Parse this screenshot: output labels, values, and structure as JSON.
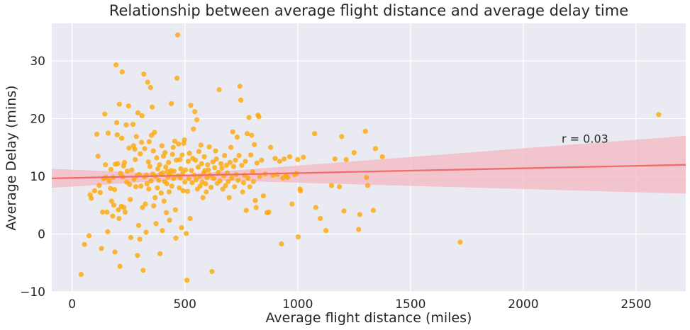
{
  "chart_data": {
    "type": "scatter",
    "title": "Relationship between average flight distance and average delay time",
    "xlabel": "Average flight distance (miles)",
    "ylabel": "Average Delay (mins)",
    "xlim": [
      -90,
      2720
    ],
    "ylim": [
      -10,
      36.5
    ],
    "xticks": [
      0,
      500,
      1000,
      1500,
      2000,
      2500
    ],
    "yticks": [
      -10,
      0,
      10,
      20,
      30
    ],
    "grid": true,
    "annotation": "r = 0.03",
    "colors": {
      "background": "#eaeaf2",
      "grid": "#ffffff",
      "points": "#ffa500",
      "regression_line": "#f26b6b",
      "confidence_band": "#f4b8c1"
    },
    "regression": {
      "x": [
        -90,
        2720
      ],
      "y": [
        9.65,
        12.0
      ]
    },
    "confidence_band": {
      "x": [
        -90,
        500,
        2720
      ],
      "upper": [
        11.3,
        10.35,
        17.0
      ],
      "lower": [
        8.0,
        9.45,
        7.0
      ]
    },
    "points": [
      [
        40,
        -7
      ],
      [
        55,
        -1.8
      ],
      [
        75,
        -0.3
      ],
      [
        80,
        6.8
      ],
      [
        85,
        6.2
      ],
      [
        100,
        7.5
      ],
      [
        110,
        17.3
      ],
      [
        115,
        13.5
      ],
      [
        120,
        8.4
      ],
      [
        125,
        7.2
      ],
      [
        130,
        -2.5
      ],
      [
        135,
        3.8
      ],
      [
        140,
        9.6
      ],
      [
        145,
        20.8
      ],
      [
        148,
        12.0
      ],
      [
        150,
        9.8
      ],
      [
        155,
        3.8
      ],
      [
        158,
        0.4
      ],
      [
        160,
        17.5
      ],
      [
        165,
        9.2
      ],
      [
        170,
        7.9
      ],
      [
        172,
        11.2
      ],
      [
        175,
        5.7
      ],
      [
        180,
        3.1
      ],
      [
        182,
        9.8
      ],
      [
        185,
        5.0
      ],
      [
        188,
        7.7
      ],
      [
        190,
        -3.1
      ],
      [
        192,
        12.1
      ],
      [
        195,
        29.3
      ],
      [
        198,
        19.3
      ],
      [
        200,
        17.2
      ],
      [
        202,
        12.2
      ],
      [
        205,
        4.2
      ],
      [
        208,
        2.7
      ],
      [
        210,
        22.5
      ],
      [
        212,
        -5.6
      ],
      [
        215,
        10.5
      ],
      [
        218,
        4.8
      ],
      [
        220,
        16.6
      ],
      [
        222,
        28.1
      ],
      [
        225,
        9.9
      ],
      [
        228,
        11.8
      ],
      [
        230,
        4.6
      ],
      [
        232,
        12.4
      ],
      [
        235,
        3.8
      ],
      [
        240,
        18.9
      ],
      [
        242,
        9.0
      ],
      [
        245,
        10.9
      ],
      [
        250,
        22.2
      ],
      [
        252,
        14.9
      ],
      [
        255,
        8.6
      ],
      [
        258,
        6.0
      ],
      [
        260,
        -0.6
      ],
      [
        265,
        11.1
      ],
      [
        270,
        19.0
      ],
      [
        272,
        15.3
      ],
      [
        275,
        9.5
      ],
      [
        278,
        14.7
      ],
      [
        280,
        12.9
      ],
      [
        282,
        8.2
      ],
      [
        285,
        16.9
      ],
      [
        288,
        10.1
      ],
      [
        290,
        -3.7
      ],
      [
        292,
        21.0
      ],
      [
        295,
        1.5
      ],
      [
        298,
        10.3
      ],
      [
        300,
        -0.9
      ],
      [
        302,
        13.9
      ],
      [
        305,
        8.3
      ],
      [
        308,
        15.9
      ],
      [
        310,
        20.5
      ],
      [
        312,
        4.6
      ],
      [
        315,
        -6.3
      ],
      [
        318,
        27.7
      ],
      [
        320,
        9.9
      ],
      [
        322,
        14.8
      ],
      [
        325,
        5.2
      ],
      [
        328,
        0.3
      ],
      [
        330,
        10.2
      ],
      [
        332,
        8.7
      ],
      [
        335,
        26.3
      ],
      [
        338,
        12.5
      ],
      [
        340,
        7.8
      ],
      [
        342,
        16.0
      ],
      [
        345,
        11.7
      ],
      [
        348,
        25.4
      ],
      [
        350,
        9.2
      ],
      [
        352,
        17.1
      ],
      [
        355,
        22.0
      ],
      [
        358,
        10.4
      ],
      [
        360,
        14.4
      ],
      [
        362,
        4.9
      ],
      [
        365,
        17.6
      ],
      [
        368,
        6.3
      ],
      [
        370,
        10.0
      ],
      [
        372,
        1.8
      ],
      [
        375,
        13.2
      ],
      [
        378,
        8.0
      ],
      [
        380,
        11.3
      ],
      [
        385,
        9.3
      ],
      [
        388,
        12.0
      ],
      [
        390,
        -3.4
      ],
      [
        392,
        10.4
      ],
      [
        395,
        7.1
      ],
      [
        398,
        15.3
      ],
      [
        400,
        0.6
      ],
      [
        402,
        10.6
      ],
      [
        405,
        13.5
      ],
      [
        408,
        5.7
      ],
      [
        410,
        9.1
      ],
      [
        412,
        14.1
      ],
      [
        415,
        11.6
      ],
      [
        418,
        3.7
      ],
      [
        420,
        8.7
      ],
      [
        422,
        10.8
      ],
      [
        425,
        9.9
      ],
      [
        428,
        12.4
      ],
      [
        430,
        7.3
      ],
      [
        432,
        2.4
      ],
      [
        435,
        10.3
      ],
      [
        438,
        11.0
      ],
      [
        440,
        22.6
      ],
      [
        442,
        8.3
      ],
      [
        445,
        13.8
      ],
      [
        448,
        15.0
      ],
      [
        450,
        9.6
      ],
      [
        452,
        10.9
      ],
      [
        455,
        16.1
      ],
      [
        458,
        4.2
      ],
      [
        460,
        -0.7
      ],
      [
        462,
        12.8
      ],
      [
        465,
        27.0
      ],
      [
        468,
        34.5
      ],
      [
        470,
        10.1
      ],
      [
        472,
        15.6
      ],
      [
        475,
        8.0
      ],
      [
        478,
        12.9
      ],
      [
        480,
        9.7
      ],
      [
        482,
        11.3
      ],
      [
        485,
        1.1
      ],
      [
        488,
        13.7
      ],
      [
        490,
        10.5
      ],
      [
        492,
        7.5
      ],
      [
        495,
        15.7
      ],
      [
        498,
        16.3
      ],
      [
        500,
        9.0
      ],
      [
        503,
        11.1
      ],
      [
        506,
        0.1
      ],
      [
        509,
        -8.0
      ],
      [
        512,
        7.4
      ],
      [
        515,
        12.6
      ],
      [
        518,
        9.6
      ],
      [
        520,
        14.0
      ],
      [
        523,
        2.7
      ],
      [
        526,
        22.3
      ],
      [
        529,
        11.0
      ],
      [
        532,
        8.9
      ],
      [
        535,
        13.1
      ],
      [
        538,
        18.2
      ],
      [
        541,
        10.2
      ],
      [
        544,
        21.2
      ],
      [
        547,
        12.8
      ],
      [
        550,
        9.4
      ],
      [
        553,
        19.8
      ],
      [
        556,
        7.8
      ],
      [
        559,
        11.6
      ],
      [
        562,
        14.3
      ],
      [
        565,
        10.0
      ],
      [
        568,
        8.3
      ],
      [
        571,
        15.4
      ],
      [
        574,
        12.2
      ],
      [
        577,
        9.0
      ],
      [
        580,
        6.3
      ],
      [
        583,
        10.6
      ],
      [
        586,
        13.4
      ],
      [
        589,
        11.0
      ],
      [
        592,
        8.7
      ],
      [
        595,
        7.3
      ],
      [
        598,
        9.8
      ],
      [
        601,
        12.0
      ],
      [
        604,
        11.1
      ],
      [
        608,
        15.1
      ],
      [
        612,
        10.2
      ],
      [
        616,
        8.1
      ],
      [
        620,
        -6.5
      ],
      [
        624,
        12.5
      ],
      [
        628,
        9.6
      ],
      [
        632,
        11.5
      ],
      [
        636,
        14.4
      ],
      [
        640,
        13.0
      ],
      [
        644,
        8.8
      ],
      [
        648,
        10.7
      ],
      [
        652,
        25.0
      ],
      [
        656,
        9.2
      ],
      [
        660,
        12.2
      ],
      [
        664,
        11.4
      ],
      [
        668,
        7.8
      ],
      [
        672,
        10.1
      ],
      [
        676,
        13.6
      ],
      [
        680,
        8.4
      ],
      [
        684,
        11.9
      ],
      [
        688,
        10.6
      ],
      [
        692,
        9.1
      ],
      [
        696,
        6.3
      ],
      [
        700,
        12.4
      ],
      [
        704,
        15.0
      ],
      [
        708,
        9.7
      ],
      [
        712,
        17.7
      ],
      [
        716,
        11.7
      ],
      [
        720,
        8.2
      ],
      [
        724,
        12.8
      ],
      [
        728,
        10.3
      ],
      [
        732,
        16.8
      ],
      [
        736,
        9.3
      ],
      [
        740,
        13.6
      ],
      [
        744,
        25.6
      ],
      [
        748,
        23.2
      ],
      [
        752,
        11.9
      ],
      [
        756,
        7.3
      ],
      [
        760,
        8.9
      ],
      [
        764,
        10.2
      ],
      [
        768,
        12.6
      ],
      [
        772,
        4.1
      ],
      [
        776,
        17.4
      ],
      [
        780,
        9.7
      ],
      [
        784,
        20.2
      ],
      [
        788,
        8.2
      ],
      [
        792,
        13.7
      ],
      [
        796,
        17.1
      ],
      [
        800,
        10.8
      ],
      [
        804,
        9.1
      ],
      [
        808,
        15.5
      ],
      [
        812,
        5.8
      ],
      [
        816,
        4.6
      ],
      [
        820,
        12.3
      ],
      [
        824,
        20.6
      ],
      [
        828,
        20.3
      ],
      [
        832,
        10.0
      ],
      [
        840,
        12.8
      ],
      [
        848,
        6.6
      ],
      [
        856,
        10.4
      ],
      [
        864,
        3.7
      ],
      [
        872,
        3.8
      ],
      [
        880,
        15.0
      ],
      [
        890,
        10.2
      ],
      [
        900,
        13.1
      ],
      [
        910,
        10.3
      ],
      [
        920,
        12.6
      ],
      [
        928,
        -1.7
      ],
      [
        934,
        9.7
      ],
      [
        940,
        13.0
      ],
      [
        948,
        10.1
      ],
      [
        956,
        9.8
      ],
      [
        965,
        13.4
      ],
      [
        975,
        5.2
      ],
      [
        985,
        10.3
      ],
      [
        995,
        10.5
      ],
      [
        1000,
        12.9
      ],
      [
        1002,
        -0.5
      ],
      [
        1010,
        7.8
      ],
      [
        1012,
        7.5
      ],
      [
        1025,
        13.3
      ],
      [
        1075,
        17.4
      ],
      [
        1080,
        4.6
      ],
      [
        1100,
        2.7
      ],
      [
        1125,
        0.6
      ],
      [
        1150,
        8.4
      ],
      [
        1165,
        13.0
      ],
      [
        1185,
        8.2
      ],
      [
        1195,
        16.9
      ],
      [
        1205,
        4.0
      ],
      [
        1215,
        12.9
      ],
      [
        1250,
        14.1
      ],
      [
        1270,
        0.8
      ],
      [
        1275,
        3.4
      ],
      [
        1300,
        17.8
      ],
      [
        1305,
        9.8
      ],
      [
        1310,
        8.4
      ],
      [
        1335,
        4.1
      ],
      [
        1345,
        14.8
      ],
      [
        1375,
        13.4
      ],
      [
        1720,
        -1.4
      ],
      [
        2600,
        20.7
      ]
    ]
  }
}
